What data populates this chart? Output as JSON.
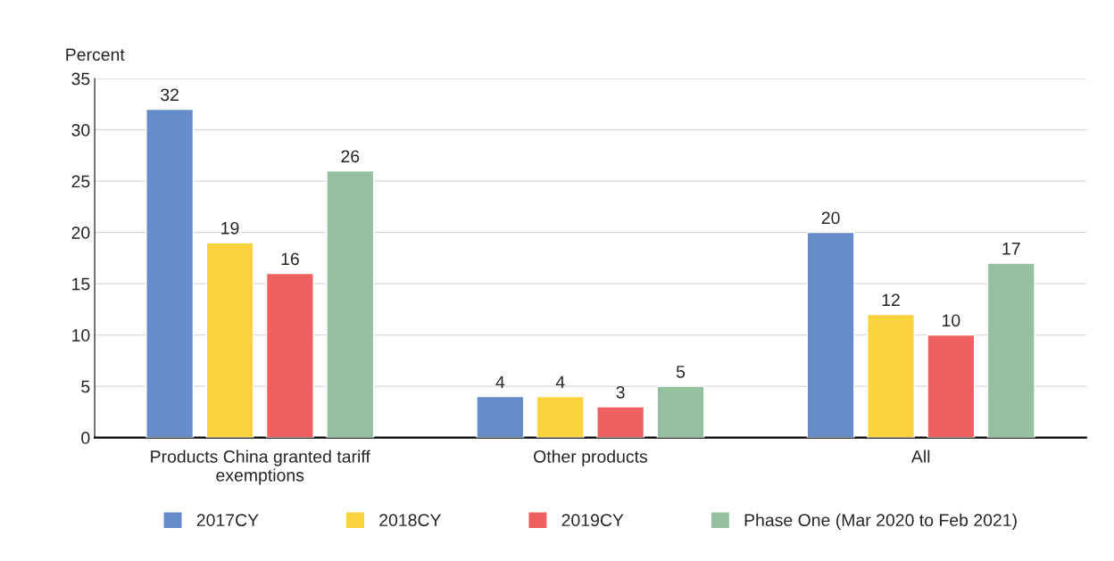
{
  "chart_data": {
    "type": "bar",
    "ylabel": "Percent",
    "categories": [
      "Products China granted tariff\nexemptions",
      "Other products",
      "All"
    ],
    "series": [
      {
        "name": "2017CY",
        "color": "#668bc9",
        "values": [
          32,
          4,
          20
        ]
      },
      {
        "name": "2018CY",
        "color": "#fbd33c",
        "values": [
          19,
          4,
          12
        ]
      },
      {
        "name": "2019CY",
        "color": "#ee5f60",
        "values": [
          16,
          3,
          10
        ]
      },
      {
        "name": "Phase One (Mar 2020 to Feb 2021)",
        "color": "#95c0a0",
        "values": [
          26,
          5,
          17
        ]
      }
    ],
    "ylim": [
      0,
      35
    ],
    "yticks": [
      0,
      5,
      10,
      15,
      20,
      25,
      30,
      35
    ],
    "grid": "y",
    "legend": "bottom",
    "data_labels": true
  }
}
